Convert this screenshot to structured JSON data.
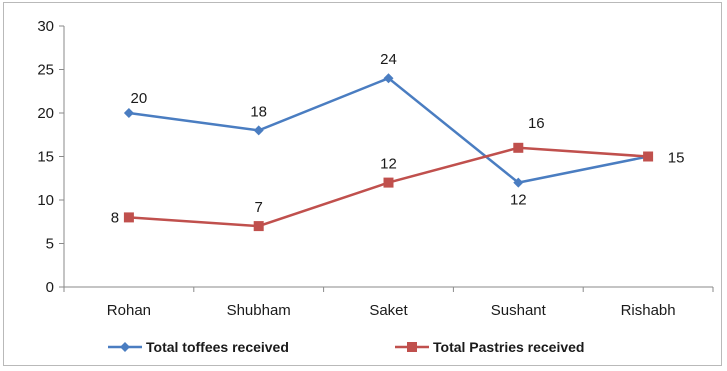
{
  "chart_data": {
    "type": "line",
    "categories": [
      "Rohan",
      "Shubham",
      "Saket",
      "Sushant",
      "Rishabh"
    ],
    "series": [
      {
        "name": "Total toffees received",
        "values": [
          20,
          18,
          24,
          12,
          15
        ],
        "color": "#4a7dc1",
        "marker": "diamond"
      },
      {
        "name": "Total Pastries received",
        "values": [
          8,
          7,
          12,
          16,
          15
        ],
        "color": "#c0504d",
        "marker": "square"
      }
    ],
    "ylim": [
      0,
      30
    ],
    "yticks": [
      0,
      5,
      10,
      15,
      20,
      25,
      30
    ],
    "grid": false,
    "legend": "bottom"
  }
}
